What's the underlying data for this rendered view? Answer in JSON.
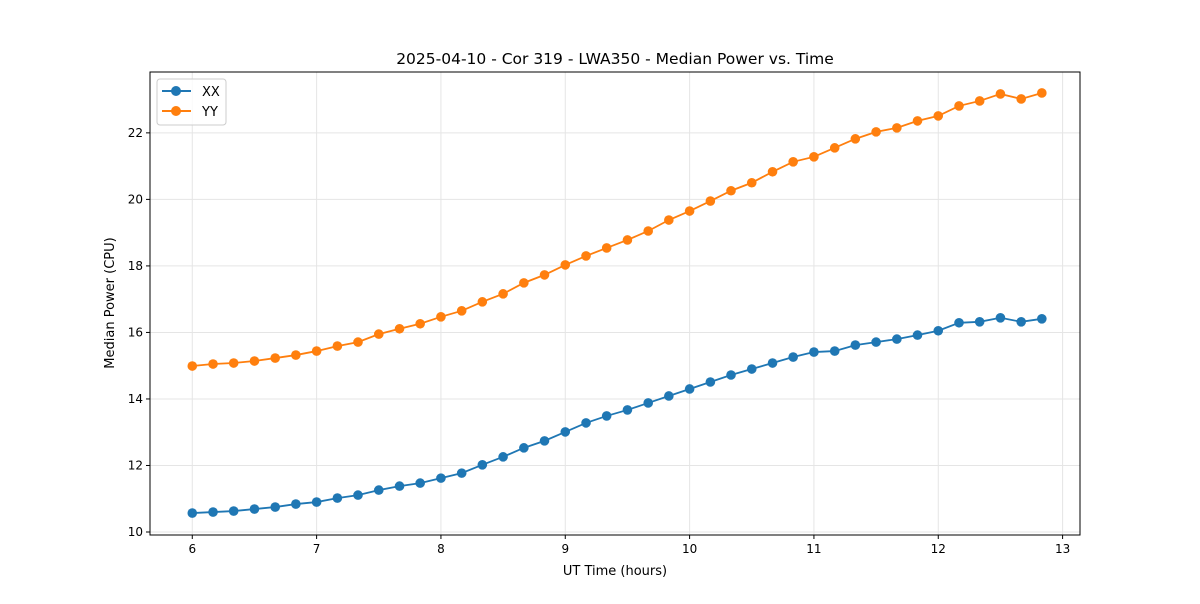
{
  "chart_data": {
    "type": "line",
    "title": "2025-04-10 - Cor 319 - LWA350 - Median Power vs. Time",
    "xlabel": "UT Time (hours)",
    "ylabel": "Median Power (CPU)",
    "xlim": [
      5.66,
      13.14
    ],
    "ylim": [
      9.91,
      23.83
    ],
    "xticks": [
      6,
      7,
      8,
      9,
      10,
      11,
      12,
      13
    ],
    "yticks": [
      10,
      12,
      14,
      16,
      18,
      20,
      22
    ],
    "grid": true,
    "legend_position": "top-left",
    "x": [
      6.0,
      6.167,
      6.333,
      6.5,
      6.667,
      6.833,
      7.0,
      7.167,
      7.333,
      7.5,
      7.667,
      7.833,
      8.0,
      8.167,
      8.333,
      8.5,
      8.667,
      8.833,
      9.0,
      9.167,
      9.333,
      9.5,
      9.667,
      9.833,
      10.0,
      10.167,
      10.333,
      10.5,
      10.667,
      10.833,
      11.0,
      11.167,
      11.333,
      11.5,
      11.667,
      11.833,
      12.0,
      12.167,
      12.333,
      12.5,
      12.667,
      12.833
    ],
    "series": [
      {
        "name": "XX",
        "color": "#1f77b4",
        "values": [
          10.57,
          10.6,
          10.63,
          10.69,
          10.75,
          10.84,
          10.9,
          11.02,
          11.11,
          11.26,
          11.38,
          11.47,
          11.62,
          11.77,
          12.02,
          12.26,
          12.53,
          12.74,
          13.01,
          13.28,
          13.49,
          13.67,
          13.88,
          14.09,
          14.3,
          14.51,
          14.72,
          14.9,
          15.08,
          15.26,
          15.41,
          15.44,
          15.62,
          15.71,
          15.8,
          15.92,
          16.05,
          16.29,
          16.32,
          16.44,
          16.32,
          16.41
        ]
      },
      {
        "name": "YY",
        "color": "#ff7f0e",
        "values": [
          14.99,
          15.05,
          15.08,
          15.14,
          15.23,
          15.32,
          15.44,
          15.59,
          15.71,
          15.95,
          16.11,
          16.26,
          16.47,
          16.65,
          16.92,
          17.16,
          17.49,
          17.73,
          18.03,
          18.3,
          18.54,
          18.78,
          19.05,
          19.38,
          19.65,
          19.95,
          20.26,
          20.5,
          20.83,
          21.13,
          21.28,
          21.55,
          21.82,
          22.03,
          22.15,
          22.36,
          22.51,
          22.81,
          22.96,
          23.17,
          23.02,
          23.2
        ]
      }
    ]
  }
}
